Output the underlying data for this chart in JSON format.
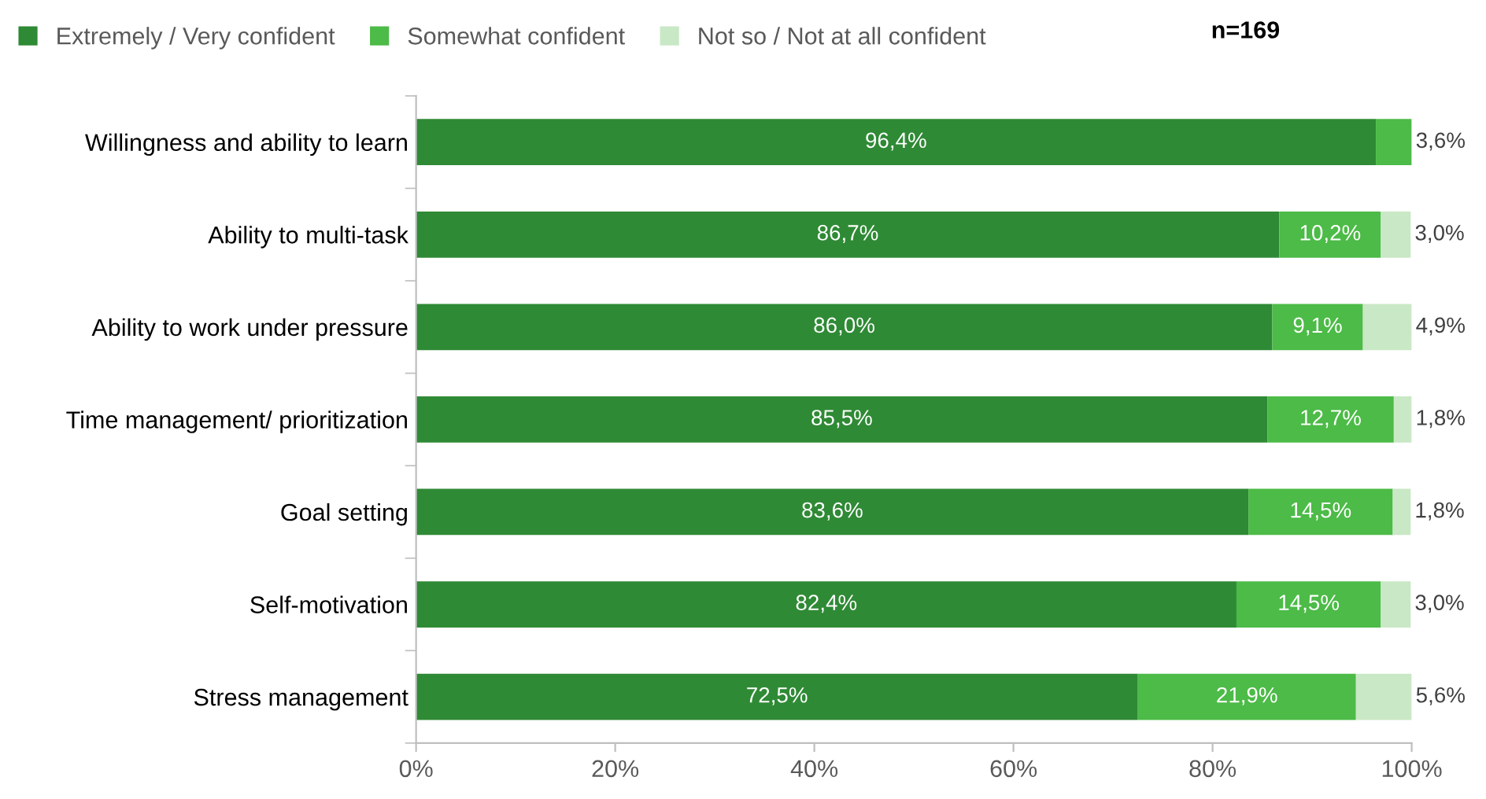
{
  "chart_data": {
    "type": "bar",
    "orientation": "horizontal",
    "stacked": true,
    "categories": [
      "Willingness and ability to learn",
      "Ability to multi-task",
      "Ability to work under pressure",
      "Time management/ prioritization",
      "Goal setting",
      "Self-motivation",
      "Stress management"
    ],
    "series": [
      {
        "name": "Extremely / Very confident",
        "color": "#2f8a35",
        "values": [
          96.4,
          86.7,
          86.0,
          85.5,
          83.6,
          82.4,
          72.5
        ],
        "value_labels": [
          "96,4%",
          "86,7%",
          "86,0%",
          "85,5%",
          "83,6%",
          "82,4%",
          "72,5%"
        ]
      },
      {
        "name": "Somewhat confident",
        "color": "#4cbb47",
        "values": [
          3.6,
          10.2,
          9.1,
          12.7,
          14.5,
          14.5,
          21.9
        ],
        "value_labels": [
          "3,6%",
          "10,2%",
          "9,1%",
          "12,7%",
          "14,5%",
          "14,5%",
          "21,9%"
        ]
      },
      {
        "name": "Not so / Not at all confident",
        "color": "#c9e8c5",
        "values": [
          null,
          3.0,
          4.9,
          1.8,
          1.8,
          3.0,
          5.6
        ],
        "value_labels": [
          null,
          "3,0%",
          "4,9%",
          "1,8%",
          "1,8%",
          "3,0%",
          "5,6%"
        ]
      }
    ],
    "xlim": [
      0,
      100
    ],
    "xticks": [
      {
        "value": 0,
        "label": "0%"
      },
      {
        "value": 20,
        "label": "20%"
      },
      {
        "value": 40,
        "label": "40%"
      },
      {
        "value": 60,
        "label": "60%"
      },
      {
        "value": 80,
        "label": "80%"
      },
      {
        "value": 100,
        "label": "100%"
      }
    ],
    "legend": "top",
    "grid": false,
    "annotations": [
      "n=169"
    ]
  }
}
